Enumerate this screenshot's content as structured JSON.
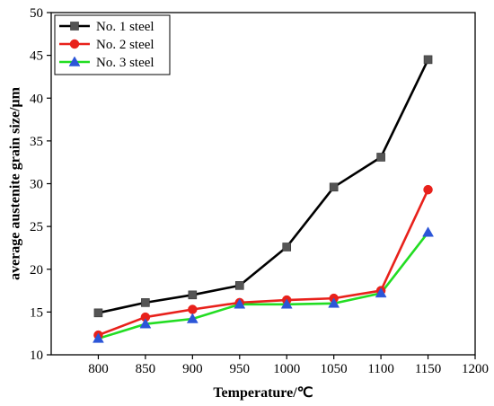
{
  "chart_data": {
    "type": "line",
    "xlabel": "Temperature/℃",
    "ylabel": "average austenite grain size/μm",
    "xlim": [
      750,
      1200
    ],
    "ylim": [
      10,
      50
    ],
    "x_ticks": [
      "800",
      "850",
      "900",
      "950",
      "1000",
      "1050",
      "1100",
      "1150",
      "1200"
    ],
    "y_ticks": [
      "10",
      "15",
      "20",
      "25",
      "30",
      "35",
      "40",
      "45",
      "50"
    ],
    "grid": false,
    "legend_position": "top-left",
    "x": [
      800,
      850,
      900,
      950,
      1000,
      1050,
      1100,
      1150
    ],
    "series": [
      {
        "name": "No. 1 steel",
        "color": "#000000",
        "marker": "square",
        "marker_color": "#555555",
        "values": [
          14.9,
          16.1,
          17.0,
          18.1,
          22.6,
          29.6,
          33.1,
          44.5
        ]
      },
      {
        "name": "No. 2 steel",
        "color": "#e8211b",
        "marker": "circle",
        "marker_color": "#e8211b",
        "values": [
          12.3,
          14.4,
          15.3,
          16.1,
          16.4,
          16.6,
          17.5,
          29.3
        ]
      },
      {
        "name": "No. 3 steel",
        "color": "#22dd22",
        "marker": "triangle",
        "marker_color": "#2c56d8",
        "values": [
          11.9,
          13.6,
          14.2,
          15.9,
          15.9,
          16.0,
          17.2,
          24.3
        ]
      }
    ]
  }
}
